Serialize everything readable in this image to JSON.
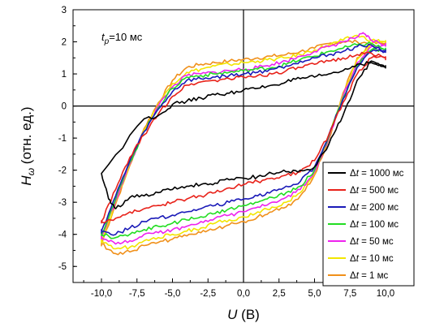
{
  "chart_data": {
    "type": "line",
    "xlabel": {
      "var": "U",
      "unit": " (В)"
    },
    "ylabel": {
      "var": "H",
      "sub": "ω",
      "unit": " (отн. ед.)"
    },
    "annotation": {
      "var": "t",
      "sub": "p",
      "rest": "=10 мс"
    },
    "xlim": [
      -12,
      12
    ],
    "ylim": [
      -5.5,
      3
    ],
    "xticks": [
      -10,
      -7.5,
      -5,
      -2.5,
      0,
      2.5,
      5,
      7.5,
      10
    ],
    "xtick_labels": [
      "-10,0",
      "-7,5",
      "-5,0",
      "-2,5",
      "0,0",
      "2,5",
      "5,0",
      "7,5",
      "10,0"
    ],
    "yticks": [
      -5,
      -4,
      -3,
      -2,
      -1,
      0,
      1,
      2,
      3
    ],
    "ytick_labels": [
      "-5",
      "-4",
      "-3",
      "-2",
      "-1",
      "0",
      "1",
      "2",
      "3"
    ],
    "zero_lines": true,
    "legend": {
      "placement": "bottom-right",
      "prefix": "Δt",
      "suffix": " мс"
    },
    "series": [
      {
        "name": "Δt = 1000 мс",
        "label_value": "1000",
        "color": "#000000",
        "upper": [
          [
            -7,
            -0.4
          ],
          [
            -6,
            -0.3
          ],
          [
            -5,
            0.05
          ],
          [
            -4,
            0.15
          ],
          [
            -3,
            0.25
          ],
          [
            -2,
            0.35
          ],
          [
            -1,
            0.4
          ],
          [
            0,
            0.5
          ],
          [
            1,
            0.55
          ],
          [
            2,
            0.65
          ],
          [
            3,
            0.75
          ],
          [
            4,
            0.85
          ],
          [
            5,
            0.9
          ],
          [
            6,
            1.0
          ],
          [
            7,
            1.1
          ],
          [
            8,
            1.3
          ],
          [
            9,
            1.35
          ],
          [
            10,
            1.2
          ]
        ],
        "lower": [
          [
            -10,
            -2.1
          ],
          [
            -9.5,
            -2.9
          ],
          [
            -9,
            -3.2
          ],
          [
            -8,
            -2.85
          ],
          [
            -7,
            -2.8
          ],
          [
            -6,
            -2.7
          ],
          [
            -5,
            -2.6
          ],
          [
            -4,
            -2.5
          ],
          [
            -3,
            -2.45
          ],
          [
            -2,
            -2.4
          ],
          [
            -1,
            -2.3
          ],
          [
            0,
            -2.25
          ],
          [
            1,
            -2.2
          ],
          [
            2,
            -2.1
          ],
          [
            3,
            -2.05
          ],
          [
            4,
            -2.0
          ],
          [
            5,
            -1.9
          ],
          [
            6,
            -1.2
          ],
          [
            7,
            -0.3
          ],
          [
            8,
            0.8
          ],
          [
            9,
            1.4
          ],
          [
            10,
            1.2
          ]
        ]
      },
      {
        "name": "Δt = 500 мс",
        "label_value": "500",
        "color": "#e8221a",
        "upper": [
          [
            -10,
            -3.6
          ],
          [
            -9,
            -2.6
          ],
          [
            -8,
            -1.6
          ],
          [
            -7,
            -0.9
          ],
          [
            -6,
            -0.25
          ],
          [
            -5,
            0.3
          ],
          [
            -4,
            0.65
          ],
          [
            -3,
            0.75
          ],
          [
            -2,
            0.8
          ],
          [
            -1,
            0.85
          ],
          [
            0,
            0.9
          ],
          [
            1,
            0.95
          ],
          [
            2,
            1.0
          ],
          [
            3,
            1.1
          ],
          [
            4,
            1.2
          ],
          [
            5,
            1.3
          ],
          [
            6,
            1.4
          ],
          [
            7,
            1.5
          ],
          [
            8,
            1.6
          ],
          [
            9,
            1.65
          ],
          [
            10,
            1.5
          ]
        ],
        "lower": [
          [
            -10,
            -3.6
          ],
          [
            -9,
            -3.5
          ],
          [
            -8,
            -3.3
          ],
          [
            -7,
            -3.2
          ],
          [
            -6,
            -3.1
          ],
          [
            -5,
            -3.0
          ],
          [
            -4,
            -2.9
          ],
          [
            -3,
            -2.8
          ],
          [
            -2,
            -2.7
          ],
          [
            -1,
            -2.55
          ],
          [
            0,
            -2.45
          ],
          [
            1,
            -2.35
          ],
          [
            2,
            -2.25
          ],
          [
            3,
            -2.15
          ],
          [
            4,
            -2.05
          ],
          [
            5,
            -1.7
          ],
          [
            6,
            -0.9
          ],
          [
            7,
            0.1
          ],
          [
            8,
            1.0
          ],
          [
            9,
            1.5
          ],
          [
            10,
            1.5
          ]
        ]
      },
      {
        "name": "Δt = 200 мс",
        "label_value": "200",
        "color": "#1a1ab8",
        "upper": [
          [
            -10,
            -3.9
          ],
          [
            -9,
            -2.8
          ],
          [
            -8,
            -1.7
          ],
          [
            -7,
            -0.8
          ],
          [
            -6,
            -0.1
          ],
          [
            -5,
            0.45
          ],
          [
            -4,
            0.8
          ],
          [
            -3,
            0.85
          ],
          [
            -2,
            0.9
          ],
          [
            -1,
            0.95
          ],
          [
            0,
            1.0
          ],
          [
            1,
            1.05
          ],
          [
            2,
            1.15
          ],
          [
            3,
            1.25
          ],
          [
            4,
            1.4
          ],
          [
            5,
            1.5
          ],
          [
            6,
            1.6
          ],
          [
            7,
            1.7
          ],
          [
            8,
            1.85
          ],
          [
            9,
            1.9
          ],
          [
            10,
            1.7
          ]
        ],
        "lower": [
          [
            -10,
            -3.9
          ],
          [
            -9,
            -4.0
          ],
          [
            -8,
            -3.8
          ],
          [
            -7,
            -3.6
          ],
          [
            -6,
            -3.5
          ],
          [
            -5,
            -3.4
          ],
          [
            -4,
            -3.3
          ],
          [
            -3,
            -3.2
          ],
          [
            -2,
            -3.1
          ],
          [
            -1,
            -3.0
          ],
          [
            0,
            -2.9
          ],
          [
            1,
            -2.8
          ],
          [
            2,
            -2.65
          ],
          [
            3,
            -2.5
          ],
          [
            4,
            -2.35
          ],
          [
            5,
            -1.9
          ],
          [
            6,
            -0.9
          ],
          [
            7,
            0.2
          ],
          [
            8,
            1.2
          ],
          [
            9,
            1.7
          ],
          [
            10,
            1.7
          ]
        ]
      },
      {
        "name": "Δt = 100 мс",
        "label_value": "100",
        "color": "#22dd22",
        "upper": [
          [
            -10,
            -4.0
          ],
          [
            -9,
            -2.9
          ],
          [
            -8,
            -1.75
          ],
          [
            -7,
            -0.8
          ],
          [
            -6,
            -0.05
          ],
          [
            -5,
            0.55
          ],
          [
            -4,
            0.9
          ],
          [
            -3,
            0.95
          ],
          [
            -2,
            1.0
          ],
          [
            -1,
            1.05
          ],
          [
            0,
            1.1
          ],
          [
            1,
            1.15
          ],
          [
            2,
            1.2
          ],
          [
            3,
            1.3
          ],
          [
            4,
            1.45
          ],
          [
            5,
            1.55
          ],
          [
            6,
            1.7
          ],
          [
            7,
            1.8
          ],
          [
            8,
            1.9
          ],
          [
            9,
            1.95
          ],
          [
            10,
            1.75
          ]
        ],
        "lower": [
          [
            -10,
            -4.0
          ],
          [
            -9,
            -4.1
          ],
          [
            -8,
            -4.0
          ],
          [
            -7,
            -3.85
          ],
          [
            -6,
            -3.75
          ],
          [
            -5,
            -3.65
          ],
          [
            -4,
            -3.55
          ],
          [
            -3,
            -3.45
          ],
          [
            -2,
            -3.35
          ],
          [
            -1,
            -3.2
          ],
          [
            0,
            -3.1
          ],
          [
            1,
            -3.0
          ],
          [
            2,
            -2.85
          ],
          [
            3,
            -2.7
          ],
          [
            4,
            -2.5
          ],
          [
            5,
            -2.0
          ],
          [
            6,
            -0.95
          ],
          [
            7,
            0.25
          ],
          [
            8,
            1.25
          ],
          [
            9,
            1.75
          ],
          [
            10,
            1.75
          ]
        ]
      },
      {
        "name": "Δt = 50 мс",
        "label_value": "50",
        "color": "#ee22ee",
        "upper": [
          [
            -10,
            -4.1
          ],
          [
            -9,
            -2.95
          ],
          [
            -8,
            -1.8
          ],
          [
            -7,
            -0.8
          ],
          [
            -6,
            0.0
          ],
          [
            -5,
            0.6
          ],
          [
            -4,
            0.95
          ],
          [
            -3,
            1.0
          ],
          [
            -2,
            1.05
          ],
          [
            -1,
            1.1
          ],
          [
            0,
            1.15
          ],
          [
            1,
            1.2
          ],
          [
            2,
            1.3
          ],
          [
            3,
            1.4
          ],
          [
            4,
            1.55
          ],
          [
            5,
            1.7
          ],
          [
            6,
            1.85
          ],
          [
            7,
            2.0
          ],
          [
            8,
            2.15
          ],
          [
            8.5,
            2.25
          ],
          [
            9,
            2.05
          ],
          [
            10,
            1.9
          ]
        ],
        "lower": [
          [
            -10,
            -4.1
          ],
          [
            -9,
            -4.3
          ],
          [
            -8,
            -4.2
          ],
          [
            -7,
            -4.0
          ],
          [
            -6,
            -3.95
          ],
          [
            -5,
            -3.85
          ],
          [
            -4,
            -3.75
          ],
          [
            -3,
            -3.6
          ],
          [
            -2,
            -3.5
          ],
          [
            -1,
            -3.4
          ],
          [
            0,
            -3.3
          ],
          [
            1,
            -3.15
          ],
          [
            2,
            -3.0
          ],
          [
            3,
            -2.85
          ],
          [
            4,
            -2.6
          ],
          [
            5,
            -2.05
          ],
          [
            6,
            -1.0
          ],
          [
            7,
            0.3
          ],
          [
            8,
            1.35
          ],
          [
            9,
            1.85
          ],
          [
            10,
            1.9
          ]
        ]
      },
      {
        "name": "Δt = 10 мс",
        "label_value": "10",
        "color": "#f2e600",
        "upper": [
          [
            -10,
            -4.2
          ],
          [
            -9,
            -3.0
          ],
          [
            -8,
            -1.8
          ],
          [
            -7,
            -0.75
          ],
          [
            -6,
            0.05
          ],
          [
            -5,
            0.7
          ],
          [
            -4,
            1.05
          ],
          [
            -3,
            1.15
          ],
          [
            -2,
            1.25
          ],
          [
            -1,
            1.3
          ],
          [
            0,
            1.35
          ],
          [
            1,
            1.4
          ],
          [
            2,
            1.45
          ],
          [
            3,
            1.5
          ],
          [
            4,
            1.6
          ],
          [
            5,
            1.75
          ],
          [
            6,
            1.9
          ],
          [
            7,
            2.05
          ],
          [
            8,
            2.2
          ],
          [
            9,
            2.05
          ],
          [
            10,
            2.0
          ]
        ],
        "lower": [
          [
            -10,
            -4.2
          ],
          [
            -9,
            -4.45
          ],
          [
            -8,
            -4.4
          ],
          [
            -7,
            -4.2
          ],
          [
            -6,
            -4.1
          ],
          [
            -5,
            -4.0
          ],
          [
            -4,
            -3.9
          ],
          [
            -3,
            -3.8
          ],
          [
            -2,
            -3.65
          ],
          [
            -1,
            -3.55
          ],
          [
            0,
            -3.45
          ],
          [
            1,
            -3.3
          ],
          [
            2,
            -3.15
          ],
          [
            3,
            -3.0
          ],
          [
            4,
            -2.7
          ],
          [
            5,
            -2.1
          ],
          [
            6,
            -1.0
          ],
          [
            7,
            0.35
          ],
          [
            8,
            1.45
          ],
          [
            9,
            1.95
          ],
          [
            10,
            2.0
          ]
        ]
      },
      {
        "name": "Δt = 1 мс",
        "label_value": "1",
        "color": "#f0901a",
        "upper": [
          [
            -10,
            -4.3
          ],
          [
            -9,
            -3.05
          ],
          [
            -8,
            -1.85
          ],
          [
            -7,
            -0.7
          ],
          [
            -6,
            0.1
          ],
          [
            -5,
            0.8
          ],
          [
            -4,
            1.2
          ],
          [
            -3,
            1.3
          ],
          [
            -2,
            1.35
          ],
          [
            -1,
            1.4
          ],
          [
            0,
            1.45
          ],
          [
            1,
            1.5
          ],
          [
            2,
            1.55
          ],
          [
            3,
            1.6
          ],
          [
            4,
            1.7
          ],
          [
            5,
            1.8
          ],
          [
            6,
            1.95
          ],
          [
            7,
            2.0
          ],
          [
            8,
            2.0
          ],
          [
            9,
            1.95
          ],
          [
            10,
            1.95
          ]
        ],
        "lower": [
          [
            -10,
            -4.3
          ],
          [
            -9,
            -4.6
          ],
          [
            -8,
            -4.55
          ],
          [
            -7,
            -4.35
          ],
          [
            -6,
            -4.25
          ],
          [
            -5,
            -4.15
          ],
          [
            -4,
            -4.05
          ],
          [
            -3,
            -3.95
          ],
          [
            -2,
            -3.85
          ],
          [
            -1,
            -3.7
          ],
          [
            0,
            -3.6
          ],
          [
            1,
            -3.45
          ],
          [
            2,
            -3.3
          ],
          [
            3,
            -3.15
          ],
          [
            4,
            -2.8
          ],
          [
            5,
            -2.15
          ],
          [
            6,
            -1.05
          ],
          [
            7,
            0.4
          ],
          [
            8,
            1.5
          ],
          [
            9,
            1.95
          ],
          [
            10,
            1.95
          ]
        ]
      }
    ]
  }
}
